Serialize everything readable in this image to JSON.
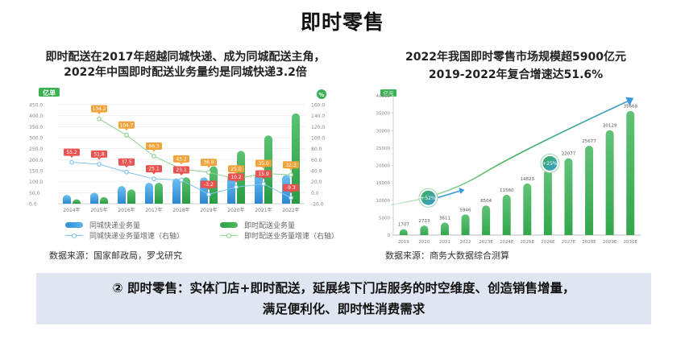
{
  "page": {
    "title": "即时零售"
  },
  "left_panel": {
    "title_line1": "即时配送在2017年超越同城快递、成为同城配送主角，",
    "title_line2": "2022年中国即时配送业务量约是同城快递3.2倍",
    "legend": {
      "blue_bar": "同城快递业务量",
      "green_bar": "即时配送业务量",
      "blue_line": "同城快递业务量增速（右轴）",
      "green_line": "即时配送业务量增速（右轴）"
    },
    "source": "数据来源：国家邮政局，罗戈研究"
  },
  "right_panel": {
    "title_line1": "2022年我国即时零售市场规模超5900亿元",
    "title_line2": "2019-2022年复合增速达51.6%",
    "source": "数据来源：商务大数据综合测算"
  },
  "callout": {
    "line1": "② 即时零售：实体门店+即时配送，延展线下门店服务的时空维度、创造销售增量，",
    "line2": "满足便利化、即时性消费需求"
  },
  "colors": {
    "blue": "#3fa3e0",
    "green": "#3cb054",
    "orange_label": "#f0a33a",
    "red_label": "#e9524f",
    "callout_bg": "#dfe6f1"
  },
  "chart_data": [
    {
      "type": "bar",
      "title": "即时配送在2017年超越同城快递、成为同城配送主角，2022年中国即时配送业务量约是同城快递3.2倍",
      "ylabel": "亿单",
      "y2label": "%",
      "categories": [
        "2014年",
        "2015年",
        "2016年",
        "2017年",
        "2018年",
        "2019年",
        "2020年",
        "2021年",
        "2022年"
      ],
      "ylim": [
        0,
        450
      ],
      "yticks": [
        "0.0",
        "50.0",
        "100.0",
        "150.0",
        "200.0",
        "250.0",
        "300.0",
        "350.0",
        "400.0",
        "450.0"
      ],
      "y2lim": [
        -20,
        160
      ],
      "y2ticks": [
        "-20.0",
        "0.0",
        "20.0",
        "40.0",
        "60.0",
        "80.0",
        "100.0",
        "120.0",
        "140.0",
        "160.0"
      ],
      "series": [
        {
          "name": "同城快递业务量",
          "kind": "bar",
          "axis": "left",
          "color": "#3fa3e0",
          "values": [
            40,
            50,
            80,
            95,
            115,
            120,
            130,
            140,
            130
          ]
        },
        {
          "name": "即时配送业务量",
          "kind": "bar",
          "axis": "left",
          "color": "#3cb054",
          "values": [
            20,
            30,
            65,
            95,
            120,
            170,
            240,
            310,
            410
          ]
        },
        {
          "name": "同城快递业务量增速（右轴）",
          "kind": "line",
          "axis": "right",
          "color": "#7ec3ee",
          "values": [
            55.2,
            51.8,
            37.5,
            25.1,
            23.1,
            -3.2,
            10.2,
            15.9,
            -9.3
          ],
          "labels": [
            "55.2",
            "51.8",
            "37.5",
            "25.1",
            "23.1",
            "-3.2",
            "10.2",
            "15.9",
            "-9.3"
          ]
        },
        {
          "name": "即时配送业务量增速（右轴）",
          "kind": "line",
          "axis": "right",
          "color": "#8fd18f",
          "values": [
            null,
            134.2,
            104.7,
            66.3,
            43.2,
            36.9,
            25.0,
            35.0,
            32.3
          ],
          "labels": [
            "",
            "134.2",
            "104.7",
            "66.3",
            "43.2",
            "36.9",
            "25.0",
            "35.0",
            "32.3"
          ]
        }
      ],
      "legend_position": "bottom",
      "grid": true
    },
    {
      "type": "bar",
      "title": "2022年我国即时零售市场规模超5900亿元 2019-2022年复合增速达51.6%",
      "ylabel": "亿元",
      "categories": [
        "2019",
        "2020",
        "2021",
        "2022",
        "2023E",
        "2024E",
        "2025E",
        "2026E",
        "2027E",
        "2028E",
        "2029E",
        "2030E"
      ],
      "values": [
        1707,
        2733,
        3611,
        5946,
        8504,
        11560,
        14823,
        18799,
        22077,
        25677,
        30129,
        35668
      ],
      "ylim": [
        0,
        40000
      ],
      "yticks": [
        "0",
        "5000",
        "10000",
        "15000",
        "20000",
        "25000",
        "30000",
        "35000",
        "40000"
      ],
      "annotations": [
        {
          "text": "+52%",
          "period": "2019-2022"
        },
        {
          "text": "+25%",
          "period": "2022-2030E"
        }
      ],
      "grid": false
    }
  ]
}
